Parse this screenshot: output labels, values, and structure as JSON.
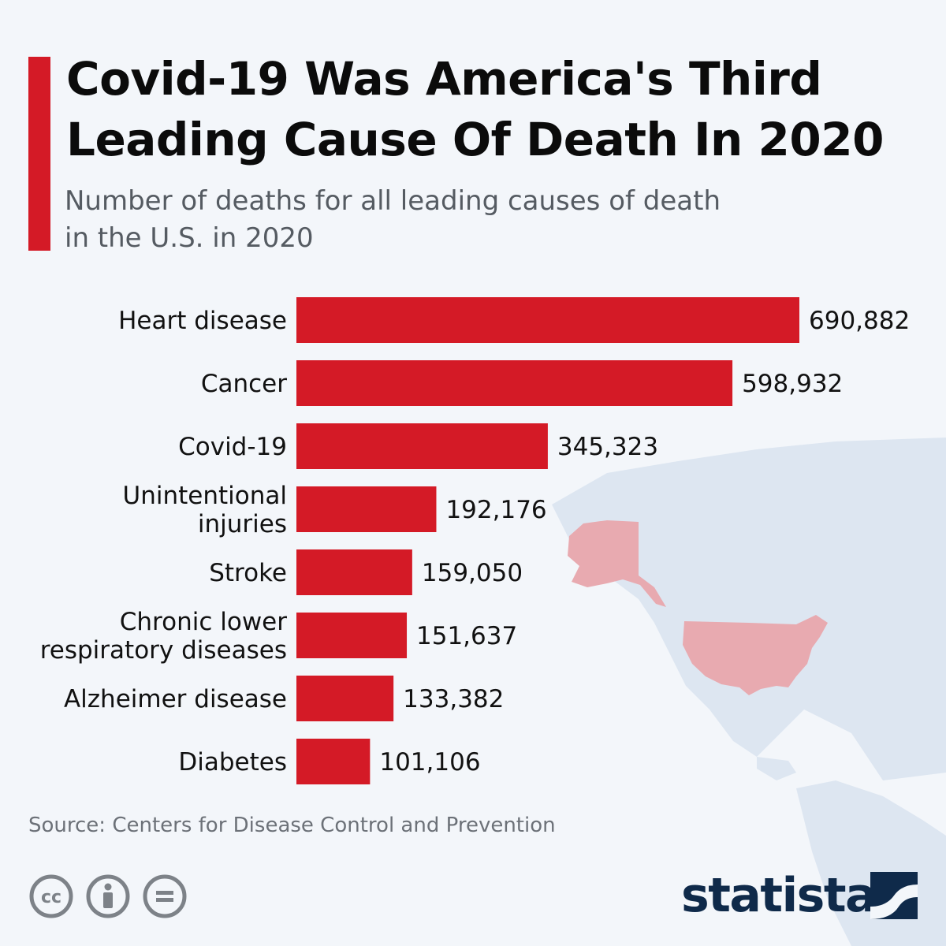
{
  "header": {
    "title_line1": "Covid-19 Was America's Third",
    "title_line2": "Leading Cause Of Death In 2020",
    "subtitle_line1": "Number of deaths for all leading causes of death",
    "subtitle_line2": "in the U.S. in 2020"
  },
  "colors": {
    "accent": "#d41a26",
    "bar": "#d41a26",
    "map_us": "#e8aab0",
    "map_world": "#dde6f1",
    "text": "#111111",
    "logo": "#0f2a4a"
  },
  "chart_data": {
    "type": "bar",
    "orientation": "horizontal",
    "title": "Covid-19 Was America's Third Leading Cause Of Death In 2020",
    "xlabel": "",
    "ylabel": "",
    "xlim": [
      0,
      690882
    ],
    "grid": false,
    "categories": [
      [
        "Heart disease"
      ],
      [
        "Cancer"
      ],
      [
        "Covid-19"
      ],
      [
        "Unintentional",
        "injuries"
      ],
      [
        "Stroke"
      ],
      [
        "Chronic lower",
        "respiratory diseases"
      ],
      [
        "Alzheimer disease"
      ],
      [
        "Diabetes"
      ]
    ],
    "values": [
      690882,
      598932,
      345323,
      192176,
      159050,
      151637,
      133382,
      101106
    ],
    "value_labels": [
      "690,882",
      "598,932",
      "345,323",
      "192,176",
      "159,050",
      "151,637",
      "133,382",
      "101,106"
    ]
  },
  "footer": {
    "source": "Source: Centers for Disease Control and Prevention",
    "brand": "statista",
    "licenses": [
      {
        "icon": "creative-commons-icon",
        "glyph": "cc"
      },
      {
        "icon": "attribution-icon",
        "glyph": ""
      },
      {
        "icon": "no-derivatives-icon",
        "glyph": "="
      }
    ]
  }
}
